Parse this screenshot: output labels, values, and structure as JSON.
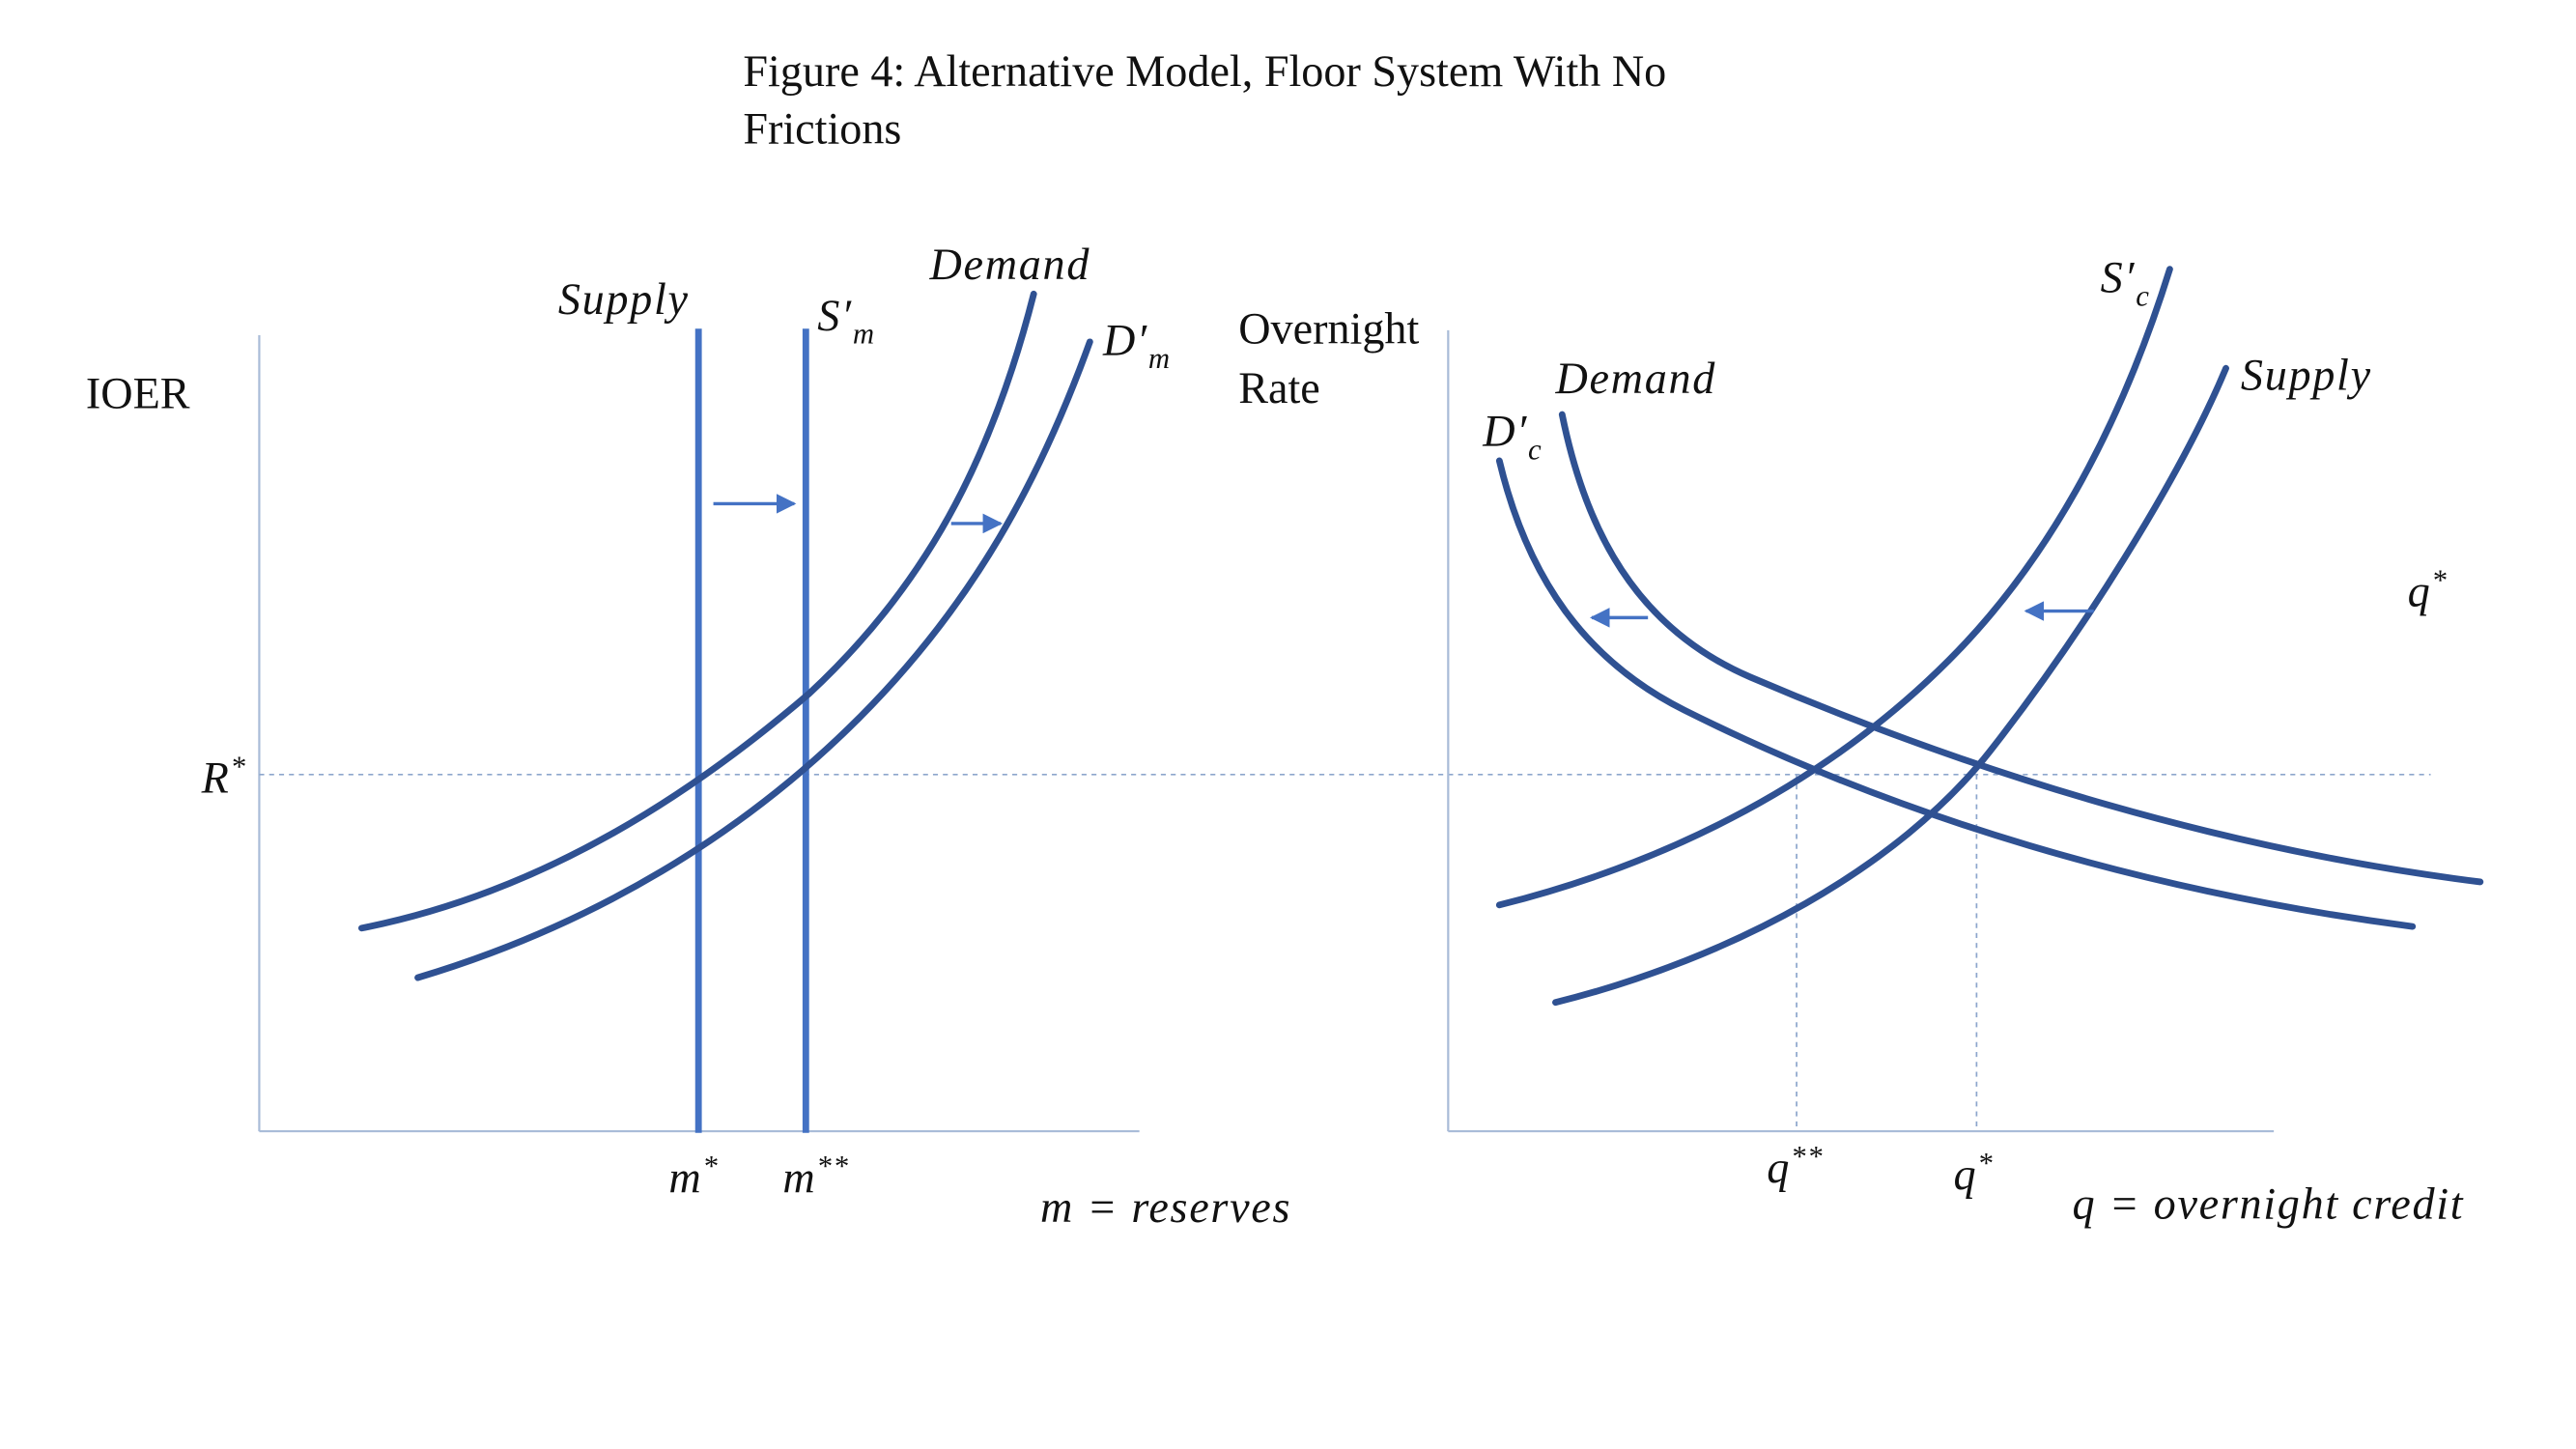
{
  "title_lines": [
    "Figure 4: Alternative Model, Floor System With No",
    "Frictions"
  ],
  "left_panel": {
    "y_label": "IOER",
    "x_label": "m = reserves",
    "supply": "Supply",
    "supply_shifted": {
      "base": "S′",
      "sub": "m"
    },
    "demand": "Demand",
    "demand_shifted": {
      "base": "D′",
      "sub": "m"
    },
    "rate_mark": {
      "base": "R",
      "sup": "*"
    },
    "x_mark_1": {
      "base": "m",
      "sup": "*"
    },
    "x_mark_2": {
      "base": "m",
      "sup": "**"
    }
  },
  "right_panel": {
    "y_label_lines": [
      "Overnight",
      "Rate"
    ],
    "x_label": "q = overnight credit",
    "demand": "Demand",
    "demand_shifted": {
      "base": "D′",
      "sub": "c"
    },
    "supply_shifted": {
      "base": "S′",
      "sub": "c"
    },
    "supply": "Supply",
    "stray_mark": {
      "base": "q",
      "sup": "*"
    },
    "x_mark_1": {
      "base": "q",
      "sup": "**"
    },
    "x_mark_2": {
      "base": "q",
      "sup": "*"
    }
  }
}
